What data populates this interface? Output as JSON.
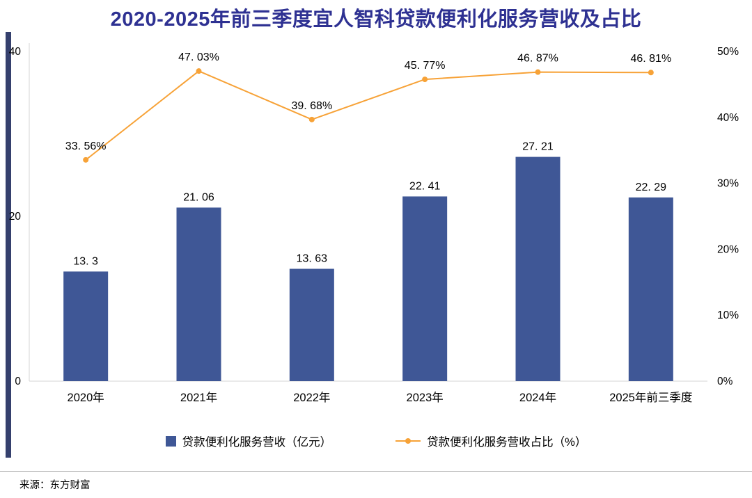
{
  "chart_data": {
    "type": "bar",
    "title": "2020-2025年前三季度宜人智科贷款便利化服务营收及占比",
    "categories": [
      "2020年",
      "2021年",
      "2022年",
      "2023年",
      "2024年",
      "2025年前三季度"
    ],
    "series": [
      {
        "name": "贷款便利化服务营收（亿元）",
        "type": "bar",
        "axis": "left",
        "values": [
          13.3,
          21.06,
          13.63,
          22.41,
          27.21,
          22.29
        ],
        "labels": [
          "13. 3",
          "21. 06",
          "13. 63",
          "22. 41",
          "27. 21",
          "22. 29"
        ],
        "color": "#3F5796"
      },
      {
        "name": "贷款便利化服务营收占比（%）",
        "type": "line",
        "axis": "right",
        "values": [
          33.56,
          47.03,
          39.68,
          45.77,
          46.87,
          46.81
        ],
        "labels": [
          "33. 56%",
          "47. 03%",
          "39. 68%",
          "45. 77%",
          "46. 87%",
          "46. 81%"
        ],
        "color": "#F7A237"
      }
    ],
    "left_axis": {
      "min": 0,
      "max": 40,
      "ticks": [
        "0",
        "20",
        "40"
      ],
      "label": ""
    },
    "right_axis": {
      "min": 0,
      "max": 50,
      "ticks": [
        "0%",
        "10%",
        "20%",
        "30%",
        "40%",
        "50%"
      ],
      "label": ""
    },
    "grid": false,
    "legend_position": "bottom"
  },
  "colors": {
    "title": "#2E3192",
    "bar": "#3F5796",
    "line": "#F7A237",
    "accent_bar": "#35406D",
    "axis": "#d6d6d6"
  },
  "footer": {
    "source": "来源：东方财富"
  }
}
